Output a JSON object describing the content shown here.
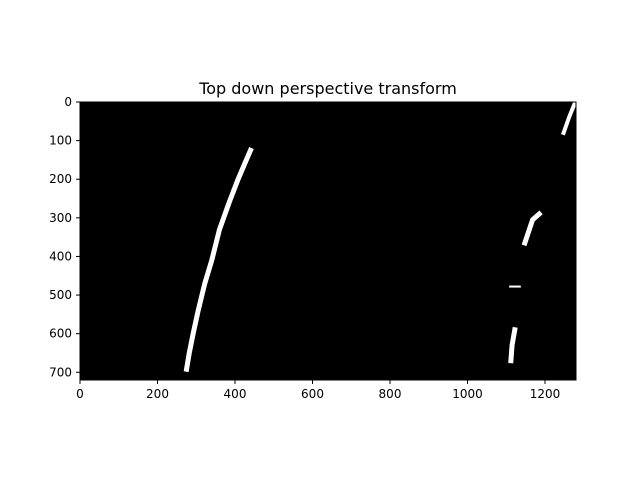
{
  "figure": {
    "title": "Top down perspective transform",
    "background_color": "#ffffff",
    "image_background_color": "#000000",
    "lane_pixel_color": "#ffffff",
    "axis_color": "#000000"
  },
  "axes": {
    "x": {
      "range": [
        0,
        1280
      ],
      "ticks": [
        0,
        200,
        400,
        600,
        800,
        1000,
        1200
      ],
      "tick_labels": [
        "0",
        "200",
        "400",
        "600",
        "800",
        "1000",
        "1200"
      ]
    },
    "y": {
      "range": [
        0,
        720
      ],
      "inverted": true,
      "ticks": [
        0,
        100,
        200,
        300,
        400,
        500,
        600,
        700
      ],
      "tick_labels": [
        "0",
        "100",
        "200",
        "300",
        "400",
        "500",
        "600",
        "700"
      ]
    }
  },
  "image_content": {
    "description_type": "binary warped lane mask",
    "left_lane": [
      {
        "x": 275,
        "y": 692
      },
      {
        "x": 282,
        "y": 650
      },
      {
        "x": 292,
        "y": 600
      },
      {
        "x": 305,
        "y": 540
      },
      {
        "x": 322,
        "y": 470
      },
      {
        "x": 340,
        "y": 410
      },
      {
        "x": 360,
        "y": 330
      },
      {
        "x": 385,
        "y": 260
      },
      {
        "x": 408,
        "y": 200
      },
      {
        "x": 425,
        "y": 160
      },
      {
        "x": 440,
        "y": 125
      }
    ],
    "right_lane_segments": [
      {
        "name": "upper",
        "points": [
          {
            "x": 1248,
            "y": 80
          },
          {
            "x": 1262,
            "y": 40
          },
          {
            "x": 1276,
            "y": 5
          }
        ]
      },
      {
        "name": "middle",
        "points": [
          {
            "x": 1148,
            "y": 365
          },
          {
            "x": 1158,
            "y": 335
          },
          {
            "x": 1168,
            "y": 305
          },
          {
            "x": 1185,
            "y": 290
          }
        ]
      },
      {
        "name": "fragment",
        "points": [
          {
            "x": 1110,
            "y": 478
          },
          {
            "x": 1135,
            "y": 478
          }
        ]
      },
      {
        "name": "lower",
        "points": [
          {
            "x": 1112,
            "y": 670
          },
          {
            "x": 1115,
            "y": 630
          },
          {
            "x": 1122,
            "y": 590
          }
        ]
      }
    ]
  }
}
